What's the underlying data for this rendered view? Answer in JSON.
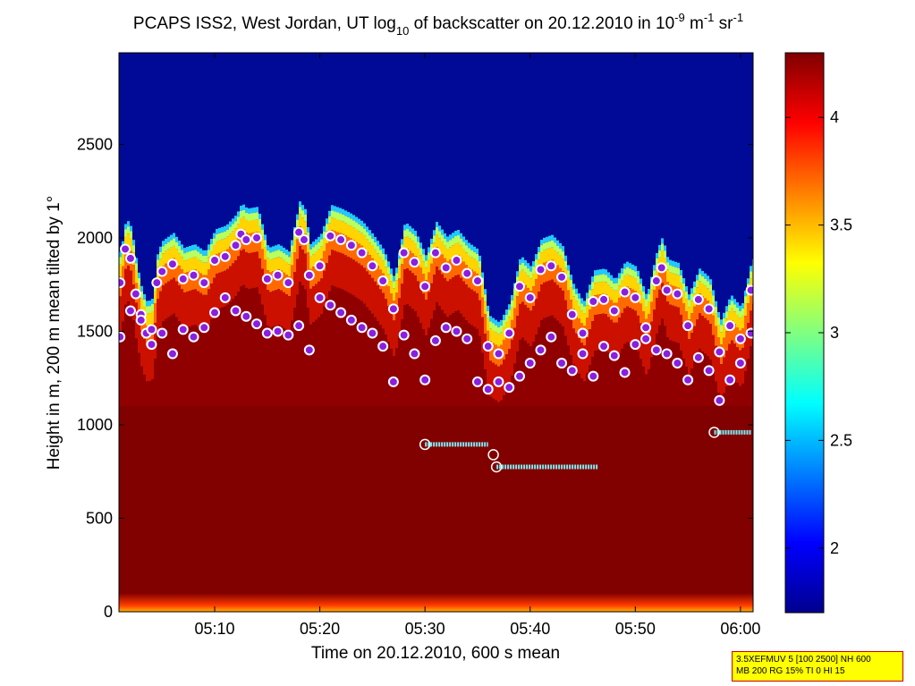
{
  "chart_data": {
    "type": "heatmap",
    "title_parts": [
      "PCAPS ISS2, West Jordan, UT log",
      "10",
      " of backscatter on 20.12.2010 in 10",
      "-9",
      " m",
      "-1",
      " sr",
      "-1"
    ],
    "xlabel": "Time on 20.12.2010, 600 s mean",
    "ylabel": "Height in m, 200 m mean tilted by 1°",
    "x_ticks": [
      "05:10",
      "05:20",
      "05:30",
      "05:40",
      "05:50",
      "06:00"
    ],
    "x_tick_minutes": [
      10,
      20,
      30,
      40,
      50,
      60
    ],
    "xlim_minutes_after_0500": [
      0.9,
      61.2
    ],
    "y_ticks": [
      0,
      500,
      1000,
      1500,
      2000,
      2500
    ],
    "ylim": [
      0,
      2990
    ],
    "colorbar": {
      "ticks": [
        2,
        2.5,
        3,
        3.5,
        4
      ],
      "clim": [
        1.7,
        4.3
      ]
    },
    "grid": false,
    "cloud_top_height_points_minutes_m": [
      [
        1,
        1760
      ],
      [
        1.5,
        1940
      ],
      [
        2,
        1890
      ],
      [
        2.5,
        1700
      ],
      [
        3,
        1560
      ],
      [
        3.5,
        1490
      ],
      [
        4,
        1510
      ],
      [
        4.5,
        1760
      ],
      [
        5,
        1820
      ],
      [
        6,
        1860
      ],
      [
        7,
        1780
      ],
      [
        8,
        1800
      ],
      [
        9,
        1760
      ],
      [
        10,
        1880
      ],
      [
        11,
        1900
      ],
      [
        12,
        1960
      ],
      [
        12.5,
        2020
      ],
      [
        13,
        1990
      ],
      [
        14,
        2000
      ],
      [
        15,
        1780
      ],
      [
        16,
        1800
      ],
      [
        17,
        1760
      ],
      [
        18,
        2030
      ],
      [
        18.5,
        1990
      ],
      [
        19,
        1800
      ],
      [
        20,
        1850
      ],
      [
        21,
        2010
      ],
      [
        22,
        1990
      ],
      [
        23,
        1960
      ],
      [
        24,
        1920
      ],
      [
        25,
        1850
      ],
      [
        26,
        1770
      ],
      [
        27,
        1620
      ],
      [
        28,
        1920
      ],
      [
        29,
        1870
      ],
      [
        30,
        1740
      ],
      [
        31,
        1920
      ],
      [
        32,
        1840
      ],
      [
        33,
        1880
      ],
      [
        34,
        1810
      ],
      [
        35,
        1770
      ],
      [
        36,
        1420
      ],
      [
        37,
        1380
      ],
      [
        38,
        1490
      ],
      [
        39,
        1740
      ],
      [
        40,
        1680
      ],
      [
        41,
        1830
      ],
      [
        42,
        1850
      ],
      [
        43,
        1790
      ],
      [
        44,
        1590
      ],
      [
        45,
        1490
      ],
      [
        46,
        1660
      ],
      [
        47,
        1670
      ],
      [
        48,
        1610
      ],
      [
        49,
        1710
      ],
      [
        50,
        1680
      ],
      [
        51,
        1520
      ],
      [
        52,
        1770
      ],
      [
        52.5,
        1840
      ],
      [
        53,
        1720
      ],
      [
        54,
        1700
      ],
      [
        55,
        1530
      ],
      [
        56,
        1670
      ],
      [
        57,
        1620
      ],
      [
        58,
        1390
      ],
      [
        59,
        1530
      ],
      [
        60,
        1460
      ],
      [
        61,
        1720
      ]
    ],
    "mixing_layer_points_minutes_m": [
      [
        1,
        1470
      ],
      [
        2,
        1610
      ],
      [
        3,
        1590
      ],
      [
        4,
        1430
      ],
      [
        5,
        1490
      ],
      [
        6,
        1380
      ],
      [
        7,
        1510
      ],
      [
        8,
        1470
      ],
      [
        9,
        1520
      ],
      [
        10,
        1600
      ],
      [
        11,
        1680
      ],
      [
        12,
        1610
      ],
      [
        13,
        1580
      ],
      [
        14,
        1540
      ],
      [
        15,
        1490
      ],
      [
        16,
        1500
      ],
      [
        17,
        1480
      ],
      [
        18,
        1530
      ],
      [
        19,
        1400
      ],
      [
        20,
        1680
      ],
      [
        21,
        1640
      ],
      [
        22,
        1600
      ],
      [
        23,
        1560
      ],
      [
        24,
        1520
      ],
      [
        25,
        1490
      ],
      [
        26,
        1420
      ],
      [
        27,
        1230
      ],
      [
        28,
        1480
      ],
      [
        29,
        1380
      ],
      [
        30,
        1240
      ],
      [
        31,
        1450
      ],
      [
        32,
        1520
      ],
      [
        33,
        1500
      ],
      [
        34,
        1460
      ],
      [
        35,
        1230
      ],
      [
        36,
        1190
      ],
      [
        37,
        1230
      ],
      [
        38,
        1200
      ],
      [
        39,
        1260
      ],
      [
        40,
        1330
      ],
      [
        41,
        1400
      ],
      [
        42,
        1470
      ],
      [
        43,
        1330
      ],
      [
        44,
        1290
      ],
      [
        45,
        1380
      ],
      [
        46,
        1260
      ],
      [
        47,
        1420
      ],
      [
        48,
        1370
      ],
      [
        49,
        1280
      ],
      [
        50,
        1430
      ],
      [
        51,
        1460
      ],
      [
        52,
        1400
      ],
      [
        53,
        1380
      ],
      [
        54,
        1330
      ],
      [
        55,
        1240
      ],
      [
        56,
        1360
      ],
      [
        57,
        1290
      ],
      [
        58,
        1130
      ],
      [
        59,
        1240
      ],
      [
        60,
        1330
      ],
      [
        61,
        1490
      ]
    ],
    "stable_layer_segments_minutes_m": [
      {
        "x_start": 30,
        "x_end": 36,
        "height": 895
      },
      {
        "x_start": 36.5,
        "x_end": 36.5,
        "height": 840
      },
      {
        "x_start": 36.8,
        "x_end": 46.5,
        "height": 775
      },
      {
        "x_start": 57.5,
        "x_end": 61,
        "height": 960
      }
    ],
    "colors": {
      "marker_fill": "#8a1fe0",
      "marker_edge": "#ffffff",
      "segment": "#7ee8f0",
      "sky": "#000a96",
      "aerosol": "#800000"
    }
  },
  "config_box": {
    "line1": "3.5XEFMUV 5 [100 2500] NH 600",
    "line2": "MB 200 RG 15% TI 0 HI 15"
  }
}
